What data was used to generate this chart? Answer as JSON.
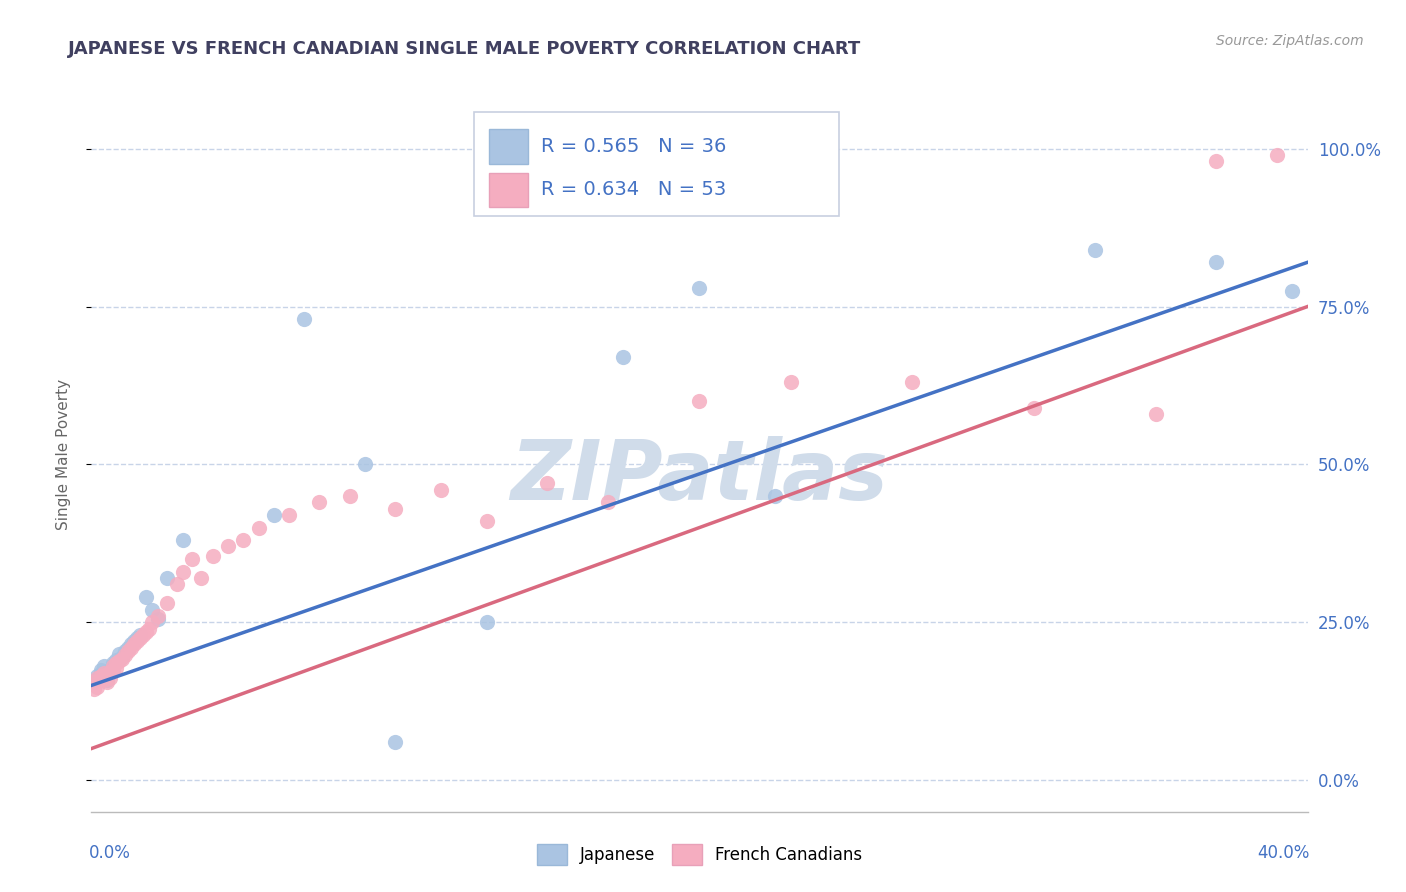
{
  "title": "JAPANESE VS FRENCH CANADIAN SINGLE MALE POVERTY CORRELATION CHART",
  "source": "Source: ZipAtlas.com",
  "ylabel": "Single Male Poverty",
  "right_yticks": [
    "100.0%",
    "75.0%",
    "50.0%",
    "25.0%",
    "0.0%"
  ],
  "right_ytick_vals": [
    1.0,
    0.75,
    0.5,
    0.25,
    0.0
  ],
  "xlim": [
    0.0,
    0.4
  ],
  "ylim": [
    -0.05,
    1.08
  ],
  "japanese_R": 0.565,
  "japanese_N": 36,
  "french_R": 0.634,
  "french_N": 53,
  "japanese_color": "#aac4e2",
  "french_color": "#f5adc0",
  "japanese_line_color": "#4472c4",
  "french_line_color": "#d9697f",
  "watermark": "ZIPatlas",
  "watermark_color": "#d0dcea",
  "background_color": "#ffffff",
  "grid_color": "#c8d4e8",
  "title_color": "#404060",
  "axis_label_color": "#4472c4",
  "jap_line_x0": 0.0,
  "jap_line_y0": 0.15,
  "jap_line_x1": 0.4,
  "jap_line_y1": 0.82,
  "fre_line_x0": 0.0,
  "fre_line_y0": 0.05,
  "fre_line_x1": 0.4,
  "fre_line_y1": 0.75,
  "jap_x": [
    0.001,
    0.002,
    0.002,
    0.003,
    0.003,
    0.004,
    0.005,
    0.005,
    0.006,
    0.007,
    0.007,
    0.008,
    0.009,
    0.01,
    0.011,
    0.012,
    0.013,
    0.014,
    0.015,
    0.016,
    0.018,
    0.02,
    0.022,
    0.025,
    0.03,
    0.06,
    0.07,
    0.09,
    0.1,
    0.13,
    0.175,
    0.2,
    0.225,
    0.33,
    0.37,
    0.395
  ],
  "jap_y": [
    0.155,
    0.16,
    0.165,
    0.17,
    0.175,
    0.18,
    0.158,
    0.168,
    0.172,
    0.178,
    0.185,
    0.19,
    0.2,
    0.195,
    0.205,
    0.21,
    0.215,
    0.22,
    0.225,
    0.23,
    0.29,
    0.27,
    0.255,
    0.32,
    0.38,
    0.42,
    0.73,
    0.5,
    0.06,
    0.25,
    0.67,
    0.78,
    0.45,
    0.84,
    0.82,
    0.775
  ],
  "fre_x": [
    0.001,
    0.001,
    0.002,
    0.002,
    0.003,
    0.003,
    0.004,
    0.004,
    0.005,
    0.005,
    0.006,
    0.006,
    0.007,
    0.007,
    0.008,
    0.008,
    0.009,
    0.01,
    0.011,
    0.012,
    0.013,
    0.014,
    0.015,
    0.016,
    0.017,
    0.018,
    0.019,
    0.02,
    0.022,
    0.025,
    0.028,
    0.03,
    0.033,
    0.036,
    0.04,
    0.045,
    0.05,
    0.055,
    0.065,
    0.075,
    0.085,
    0.1,
    0.115,
    0.13,
    0.15,
    0.17,
    0.2,
    0.23,
    0.27,
    0.31,
    0.35,
    0.37,
    0.39
  ],
  "fre_y": [
    0.145,
    0.155,
    0.148,
    0.162,
    0.158,
    0.165,
    0.16,
    0.17,
    0.155,
    0.168,
    0.162,
    0.172,
    0.175,
    0.18,
    0.178,
    0.185,
    0.188,
    0.192,
    0.198,
    0.205,
    0.21,
    0.215,
    0.22,
    0.225,
    0.23,
    0.235,
    0.24,
    0.25,
    0.26,
    0.28,
    0.31,
    0.33,
    0.35,
    0.32,
    0.355,
    0.37,
    0.38,
    0.4,
    0.42,
    0.44,
    0.45,
    0.43,
    0.46,
    0.41,
    0.47,
    0.44,
    0.6,
    0.63,
    0.63,
    0.59,
    0.58,
    0.98,
    0.99
  ]
}
